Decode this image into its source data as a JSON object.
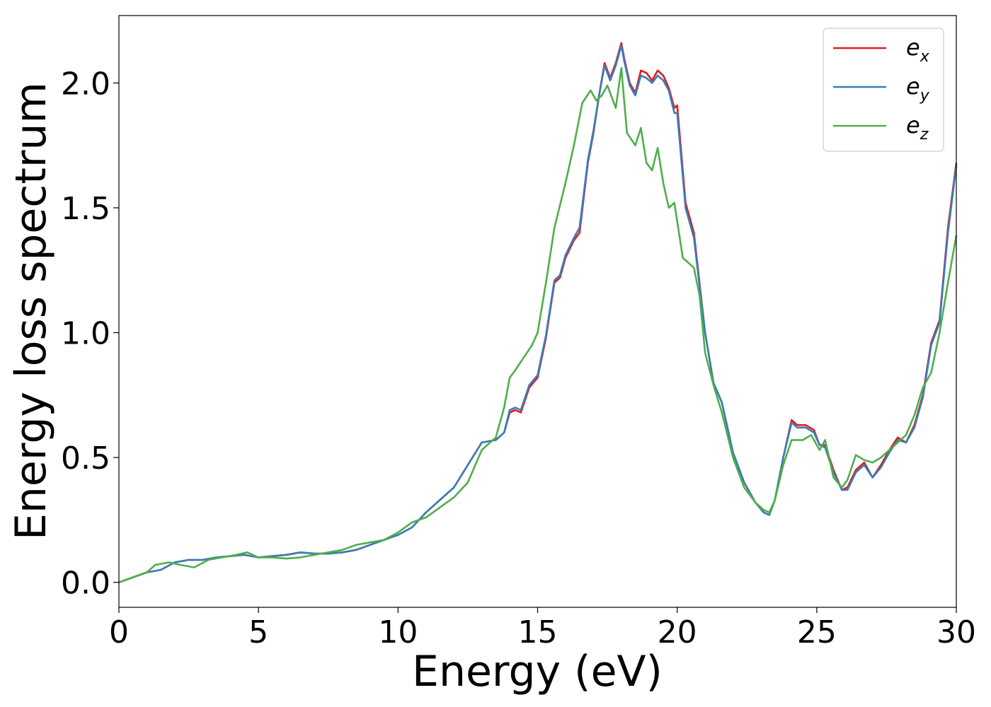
{
  "chart_data": {
    "type": "line",
    "xlabel": "Energy (eV)",
    "ylabel": "Energy loss spectrum",
    "xlim": [
      0,
      30
    ],
    "ylim": [
      -0.1,
      2.27
    ],
    "xticks": [
      0,
      5,
      10,
      15,
      20,
      25,
      30
    ],
    "xtick_labels": [
      "0",
      "5",
      "10",
      "15",
      "20",
      "25",
      "30"
    ],
    "yticks": [
      0.0,
      0.5,
      1.0,
      1.5,
      2.0
    ],
    "ytick_labels": [
      "0.0",
      "0.5",
      "1.0",
      "1.5",
      "2.0"
    ],
    "grid": false,
    "legend_position": "top-right",
    "series": [
      {
        "name": "e_x",
        "label_base": "e",
        "label_sub": "x",
        "color": "#e41a1c",
        "x": [
          0,
          0.5,
          1,
          1.5,
          2,
          2.5,
          3,
          3.5,
          4,
          4.5,
          5,
          5.5,
          6,
          6.5,
          7,
          7.5,
          8,
          8.5,
          9,
          9.5,
          10,
          10.5,
          11,
          11.5,
          12,
          12.5,
          13,
          13.5,
          13.8,
          14,
          14.2,
          14.4,
          14.7,
          15,
          15.3,
          15.6,
          15.8,
          16,
          16.3,
          16.5,
          16.8,
          17,
          17.2,
          17.4,
          17.6,
          17.8,
          18,
          18.1,
          18.3,
          18.5,
          18.7,
          18.9,
          19.1,
          19.3,
          19.5,
          19.7,
          19.9,
          20,
          20.3,
          20.6,
          20.8,
          21,
          21.3,
          21.6,
          22,
          22.4,
          22.8,
          23.1,
          23.3,
          23.5,
          23.8,
          24.1,
          24.3,
          24.6,
          24.9,
          25.1,
          25.3,
          25.6,
          25.9,
          26.1,
          26.4,
          26.7,
          27,
          27.3,
          27.6,
          27.9,
          28.2,
          28.5,
          28.8,
          29.1,
          29.4,
          29.7,
          30
        ],
        "y": [
          0.0,
          0.02,
          0.04,
          0.05,
          0.08,
          0.09,
          0.09,
          0.1,
          0.105,
          0.11,
          0.1,
          0.105,
          0.11,
          0.12,
          0.115,
          0.115,
          0.12,
          0.13,
          0.15,
          0.17,
          0.19,
          0.22,
          0.28,
          0.33,
          0.38,
          0.47,
          0.56,
          0.57,
          0.6,
          0.68,
          0.69,
          0.68,
          0.78,
          0.82,
          0.98,
          1.2,
          1.22,
          1.3,
          1.37,
          1.4,
          1.68,
          1.8,
          1.95,
          2.08,
          2.02,
          2.08,
          2.16,
          2.1,
          2.0,
          1.96,
          2.05,
          2.04,
          2.01,
          2.05,
          2.03,
          1.98,
          1.9,
          1.91,
          1.52,
          1.4,
          1.2,
          1.0,
          0.8,
          0.72,
          0.52,
          0.4,
          0.32,
          0.28,
          0.27,
          0.33,
          0.5,
          0.65,
          0.63,
          0.63,
          0.61,
          0.55,
          0.55,
          0.45,
          0.37,
          0.38,
          0.45,
          0.48,
          0.42,
          0.47,
          0.53,
          0.58,
          0.56,
          0.63,
          0.75,
          0.96,
          1.05,
          1.42,
          1.68
        ]
      },
      {
        "name": "e_y",
        "label_base": "e",
        "label_sub": "y",
        "color": "#377eb8",
        "x": [
          0,
          0.5,
          1,
          1.5,
          2,
          2.5,
          3,
          3.5,
          4,
          4.5,
          5,
          5.5,
          6,
          6.5,
          7,
          7.5,
          8,
          8.5,
          9,
          9.5,
          10,
          10.5,
          11,
          11.5,
          12,
          12.5,
          13,
          13.5,
          13.8,
          14,
          14.2,
          14.4,
          14.7,
          15,
          15.3,
          15.6,
          15.8,
          16,
          16.3,
          16.5,
          16.8,
          17,
          17.2,
          17.4,
          17.6,
          17.8,
          18,
          18.1,
          18.3,
          18.5,
          18.7,
          18.9,
          19.1,
          19.3,
          19.5,
          19.7,
          19.9,
          20,
          20.3,
          20.6,
          20.8,
          21,
          21.3,
          21.6,
          22,
          22.4,
          22.8,
          23.1,
          23.3,
          23.5,
          23.8,
          24.1,
          24.3,
          24.6,
          24.9,
          25.1,
          25.3,
          25.6,
          25.9,
          26.1,
          26.4,
          26.7,
          27,
          27.3,
          27.6,
          27.9,
          28.2,
          28.5,
          28.8,
          29.1,
          29.4,
          29.7,
          30
        ],
        "y": [
          0.0,
          0.02,
          0.04,
          0.05,
          0.08,
          0.09,
          0.09,
          0.1,
          0.105,
          0.11,
          0.1,
          0.105,
          0.11,
          0.12,
          0.115,
          0.115,
          0.12,
          0.13,
          0.15,
          0.17,
          0.19,
          0.22,
          0.28,
          0.33,
          0.38,
          0.47,
          0.56,
          0.57,
          0.6,
          0.69,
          0.7,
          0.69,
          0.79,
          0.83,
          0.99,
          1.21,
          1.23,
          1.31,
          1.38,
          1.42,
          1.69,
          1.81,
          1.95,
          2.07,
          2.01,
          2.07,
          2.15,
          2.09,
          1.99,
          1.95,
          2.03,
          2.02,
          2.0,
          2.03,
          2.01,
          1.97,
          1.88,
          1.88,
          1.5,
          1.38,
          1.19,
          1.0,
          0.8,
          0.72,
          0.52,
          0.4,
          0.32,
          0.28,
          0.27,
          0.33,
          0.5,
          0.64,
          0.62,
          0.62,
          0.6,
          0.55,
          0.54,
          0.44,
          0.37,
          0.37,
          0.44,
          0.47,
          0.42,
          0.46,
          0.52,
          0.57,
          0.56,
          0.62,
          0.74,
          0.95,
          1.04,
          1.4,
          1.67
        ]
      },
      {
        "name": "e_z",
        "label_base": "e",
        "label_sub": "z",
        "color": "#4daf4a",
        "x": [
          0,
          0.5,
          1,
          1.3,
          1.8,
          2.2,
          2.7,
          3.2,
          3.7,
          4.2,
          4.6,
          5,
          5.5,
          6,
          6.5,
          7,
          7.5,
          8,
          8.5,
          9,
          9.5,
          10,
          10.5,
          11,
          11.5,
          12,
          12.5,
          13,
          13.5,
          13.8,
          14,
          14.2,
          14.5,
          14.8,
          15,
          15.3,
          15.6,
          16,
          16.3,
          16.6,
          16.9,
          17.1,
          17.3,
          17.5,
          17.8,
          18,
          18.2,
          18.5,
          18.7,
          18.9,
          19.1,
          19.3,
          19.5,
          19.7,
          19.9,
          20.2,
          20.6,
          20.8,
          21,
          21.3,
          21.6,
          22,
          22.4,
          22.8,
          23.1,
          23.3,
          23.5,
          23.8,
          24.1,
          24.5,
          24.8,
          25.1,
          25.3,
          25.6,
          25.9,
          26.1,
          26.4,
          26.7,
          27,
          27.3,
          27.6,
          27.9,
          28.2,
          28.5,
          28.8,
          29.1,
          29.4,
          29.7,
          30
        ],
        "y": [
          0.0,
          0.02,
          0.04,
          0.07,
          0.08,
          0.07,
          0.06,
          0.09,
          0.1,
          0.11,
          0.12,
          0.1,
          0.1,
          0.095,
          0.1,
          0.11,
          0.12,
          0.13,
          0.15,
          0.16,
          0.17,
          0.2,
          0.24,
          0.26,
          0.3,
          0.34,
          0.4,
          0.53,
          0.58,
          0.7,
          0.82,
          0.85,
          0.9,
          0.95,
          1.0,
          1.2,
          1.42,
          1.6,
          1.75,
          1.92,
          1.97,
          1.93,
          1.95,
          1.99,
          1.9,
          2.06,
          1.8,
          1.75,
          1.82,
          1.68,
          1.65,
          1.74,
          1.6,
          1.5,
          1.52,
          1.3,
          1.26,
          1.15,
          0.92,
          0.79,
          0.68,
          0.5,
          0.38,
          0.32,
          0.29,
          0.28,
          0.33,
          0.47,
          0.57,
          0.57,
          0.59,
          0.53,
          0.57,
          0.42,
          0.38,
          0.41,
          0.51,
          0.49,
          0.48,
          0.5,
          0.53,
          0.56,
          0.59,
          0.67,
          0.78,
          0.84,
          1.0,
          1.2,
          1.39
        ]
      }
    ]
  }
}
